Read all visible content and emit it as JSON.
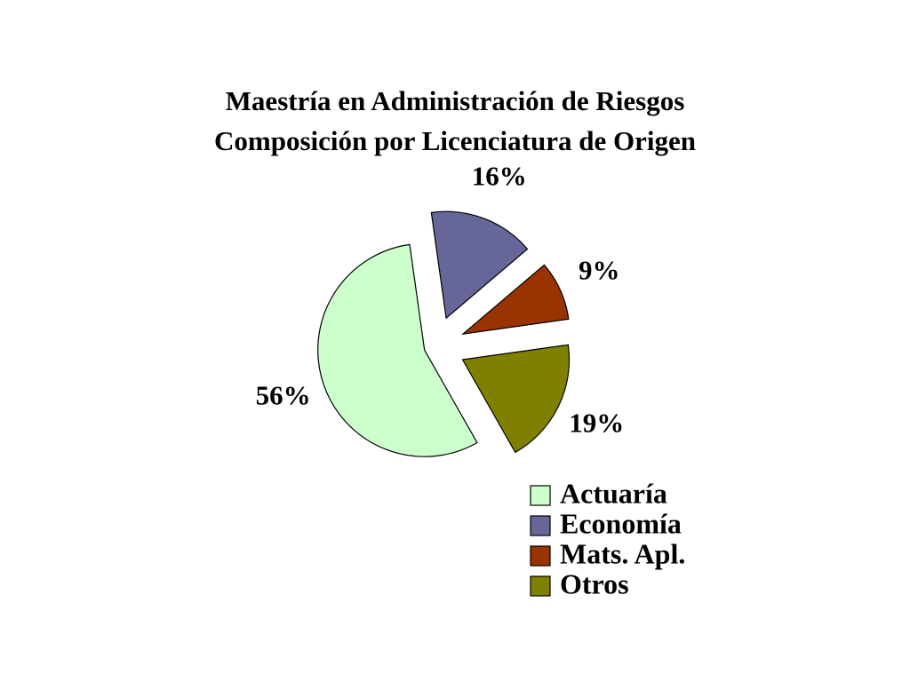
{
  "chart_data": {
    "type": "pie",
    "title": [
      "Maestría en Administración de Riesgos",
      "Composición por Licenciatura de Origen"
    ],
    "categories": [
      "Actuaría",
      "Economía",
      "Mats. Apl.",
      "Otros"
    ],
    "values": [
      56,
      16,
      9,
      19
    ],
    "value_labels": [
      "56%",
      "16%",
      "9%",
      "19%"
    ],
    "colors": [
      "#ccffcc",
      "#666699",
      "#993300",
      "#808000"
    ],
    "legend": "bottom-right"
  }
}
